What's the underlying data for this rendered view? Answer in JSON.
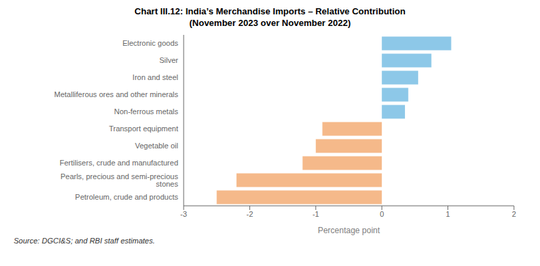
{
  "chart_data": {
    "type": "bar",
    "orientation": "horizontal",
    "title": "Chart III.12: India’s Merchandise Imports – Relative Contribution",
    "subtitle": "(November 2023 over November 2022)",
    "categories": [
      "Petroleum, crude and products",
      "Pearls, precious and semi-precious stones",
      "Fertilisers, crude and manufactured",
      "Vegetable oil",
      "Transport equipment",
      "Non-ferrous metals",
      "Metalliferous ores and other minerals",
      "Iron and steel",
      "Silver",
      "Electronic goods"
    ],
    "values": [
      -2.5,
      -2.2,
      -1.2,
      -1.0,
      -0.9,
      0.35,
      0.4,
      0.55,
      0.75,
      1.05
    ],
    "colors": [
      "#F5B98A",
      "#F5B98A",
      "#F5B98A",
      "#F5B98A",
      "#F5B98A",
      "#8DC8E8",
      "#8DC8E8",
      "#8DC8E8",
      "#8DC8E8",
      "#8DC8E8"
    ],
    "xlabel": "Percentage point",
    "xlim": [
      -3,
      2
    ],
    "xticks": [
      -3,
      -2,
      -1,
      0,
      1,
      2
    ],
    "grid": false,
    "annotations": [
      "Source: DGCI&S; and RBI staff estimates."
    ]
  }
}
